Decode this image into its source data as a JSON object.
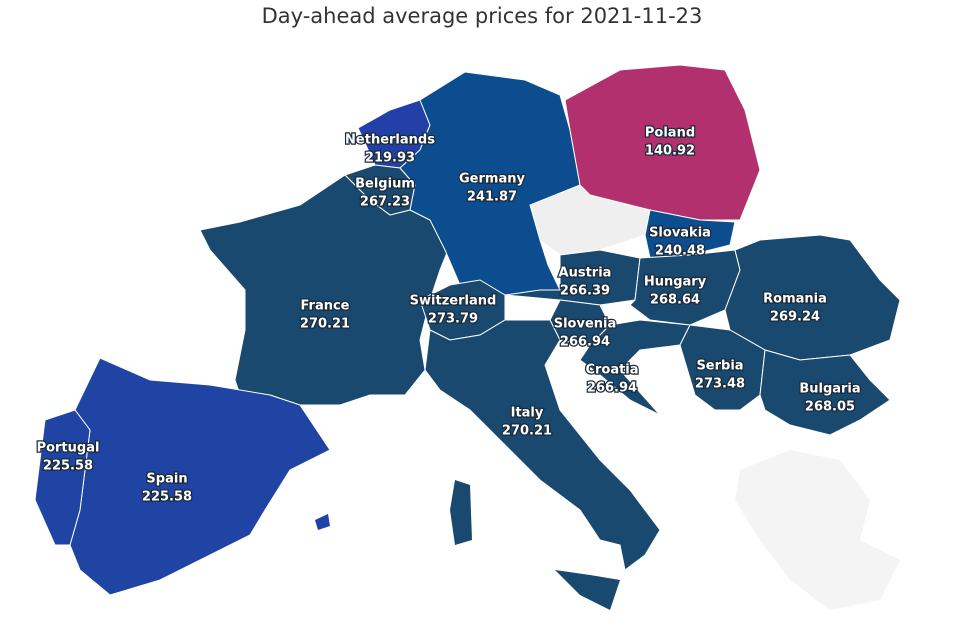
{
  "title": "Day-ahead average prices for 2021-11-23",
  "regions": [
    {
      "name": "France",
      "value": 270.21,
      "color": "#19496f"
    },
    {
      "name": "Spain",
      "value": 225.58,
      "color": "#1f44a3"
    },
    {
      "name": "Portugal",
      "value": 225.58,
      "color": "#1f44a3"
    },
    {
      "name": "Netherlands",
      "value": 219.93,
      "color": "#2340a8"
    },
    {
      "name": "Belgium",
      "value": 267.23,
      "color": "#19496f"
    },
    {
      "name": "Germany",
      "value": 241.87,
      "color": "#0c4d90"
    },
    {
      "name": "Poland",
      "value": 140.92,
      "color": "#b3306f"
    },
    {
      "name": "Slovakia",
      "value": 240.48,
      "color": "#0c4d90"
    },
    {
      "name": "Austria",
      "value": 266.39,
      "color": "#19496f"
    },
    {
      "name": "Switzerland",
      "value": 273.79,
      "color": "#19496f"
    },
    {
      "name": "Hungary",
      "value": 268.64,
      "color": "#19496f"
    },
    {
      "name": "Romania",
      "value": 269.24,
      "color": "#19496f"
    },
    {
      "name": "Slovenia",
      "value": 266.94,
      "color": "#19496f"
    },
    {
      "name": "Croatia",
      "value": 266.94,
      "color": "#19496f"
    },
    {
      "name": "Serbia",
      "value": 273.48,
      "color": "#19496f"
    },
    {
      "name": "Bulgaria",
      "value": 268.05,
      "color": "#19496f"
    },
    {
      "name": "Italy",
      "value": 270.21,
      "color": "#19496f"
    }
  ]
}
